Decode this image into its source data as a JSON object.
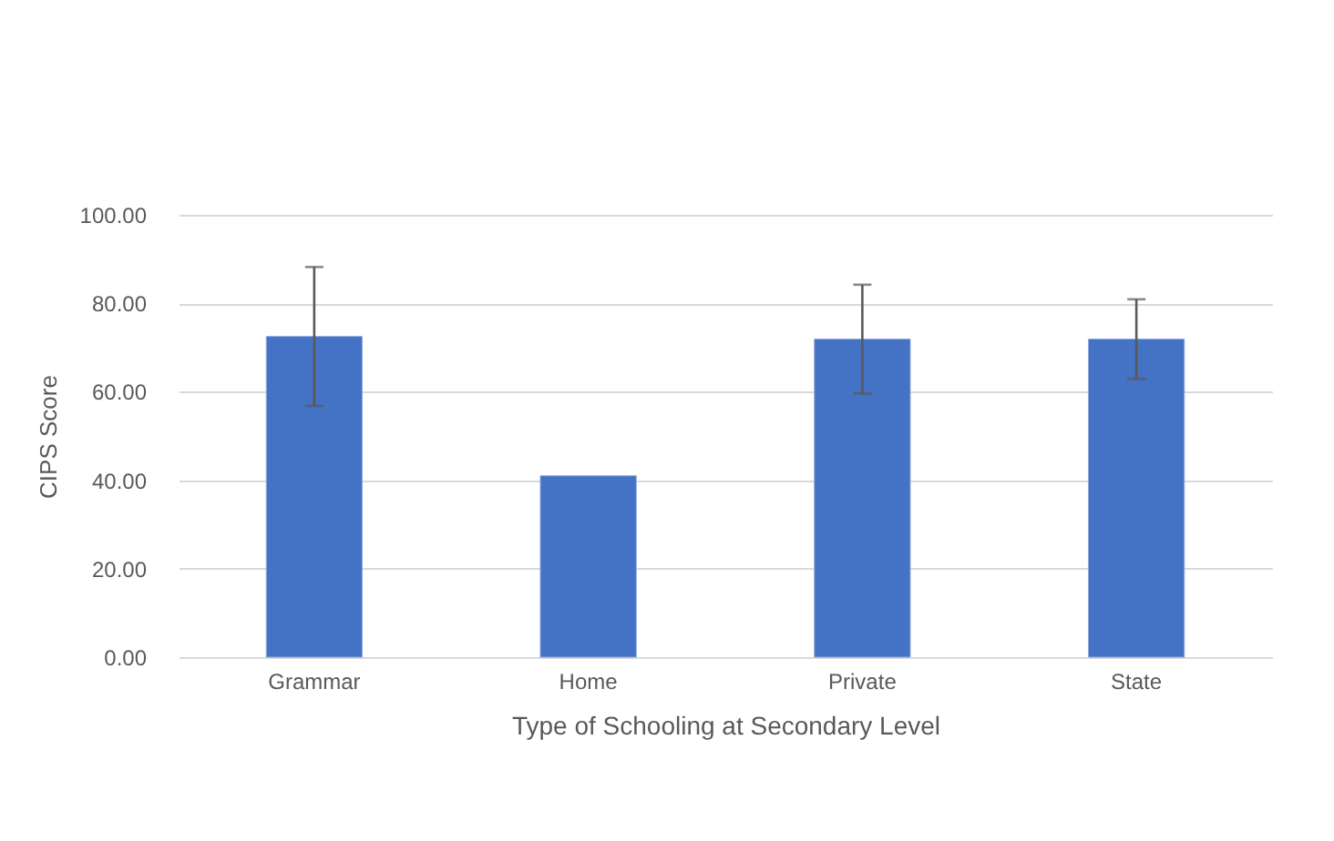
{
  "chart_data": {
    "type": "bar",
    "categories": [
      "Grammar",
      "Home",
      "Private",
      "State"
    ],
    "values": [
      72.5,
      41.0,
      71.9,
      71.9
    ],
    "errors": [
      15.7,
      null,
      12.3,
      9.0
    ],
    "color": "#4472c4",
    "xlabel": "Type of Schooling at Secondary Level",
    "ylabel": "CIPS Score",
    "ylim": [
      0,
      100
    ],
    "yticks": [
      {
        "value": 0,
        "label": "0.00"
      },
      {
        "value": 20,
        "label": "20.00"
      },
      {
        "value": 40,
        "label": "40.00"
      },
      {
        "value": 60,
        "label": "60.00"
      },
      {
        "value": 80,
        "label": "80.00"
      },
      {
        "value": 100,
        "label": "100.00"
      }
    ],
    "grid": "y"
  }
}
